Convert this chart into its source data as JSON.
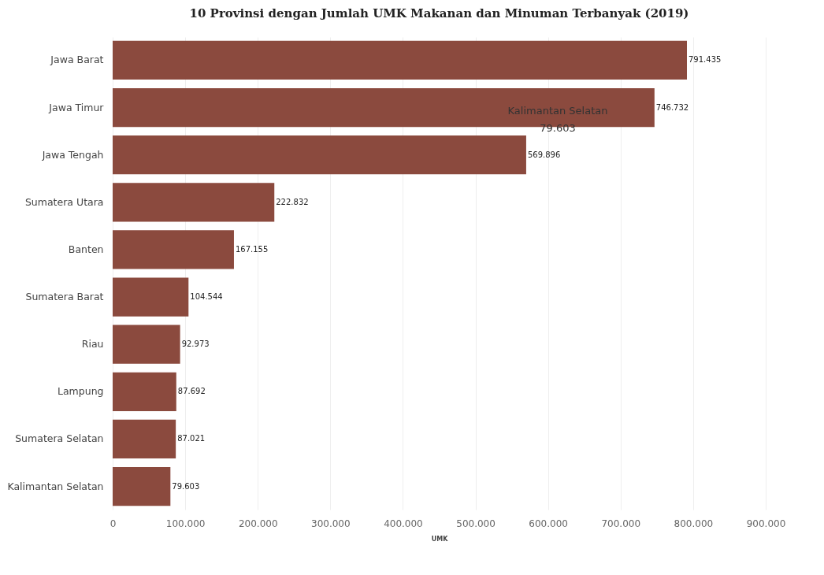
{
  "chart_data": {
    "type": "bar",
    "orientation": "horizontal",
    "title": "10 Provinsi dengan Jumlah UMK Makanan dan Minuman Terbanyak (2019)",
    "xlabel": "UMK",
    "categories": [
      "Jawa Barat",
      "Jawa Timur",
      "Jawa Tengah",
      "Sumatera Utara",
      "Banten",
      "Sumatera Barat",
      "Riau",
      "Lampung",
      "Sumatera Selatan",
      "Kalimantan Selatan"
    ],
    "values": [
      791435,
      746732,
      569896,
      222832,
      167155,
      104544,
      92973,
      87692,
      87021,
      79603
    ],
    "value_labels": [
      "791.435",
      "746.732",
      "569.896",
      "222.832",
      "167.155",
      "104.544",
      "92.973",
      "87.692",
      "87.021",
      "79.603"
    ],
    "color": "#8b4a3e",
    "xlim": [
      0,
      900000
    ],
    "xticks": [
      0,
      {
        "value": 100000,
        "label": "100.000"
      },
      {
        "value": 200000,
        "label": "200.000"
      },
      {
        "value": 300000,
        "label": "300.000"
      },
      {
        "value": 400000,
        "label": "400.000"
      },
      {
        "value": 500000,
        "label": "500.000"
      },
      {
        "value": 600000,
        "label": "600.000"
      },
      {
        "value": 700000,
        "label": "700.000"
      },
      {
        "value": 800000,
        "label": "800.000"
      },
      {
        "value": 900000,
        "label": "900.000"
      }
    ],
    "grid": "x",
    "annotations": [
      "Kalimantan Selatan",
      "79.603"
    ]
  }
}
